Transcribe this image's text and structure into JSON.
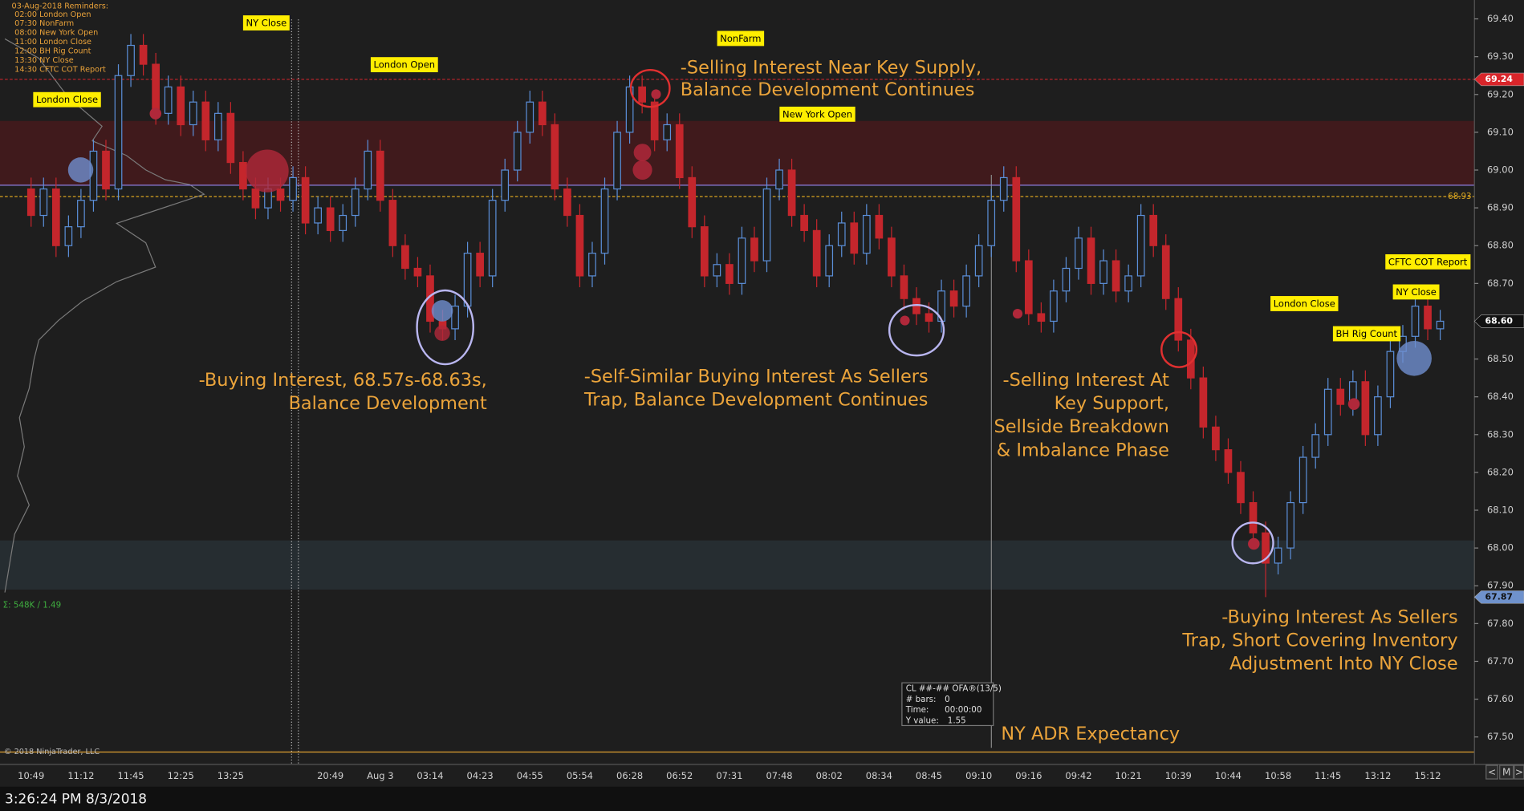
{
  "chart_data": {
    "type": "candlestick",
    "categories": [
      "10:49",
      null,
      null,
      null,
      "11:12",
      null,
      null,
      null,
      "11:45",
      null,
      null,
      null,
      "12:25",
      null,
      null,
      null,
      "13:25",
      null,
      null,
      null,
      null,
      null,
      null,
      null,
      "20:49",
      null,
      null,
      null,
      "Aug 3",
      null,
      null,
      null,
      "03:14",
      null,
      null,
      null,
      "04:23",
      null,
      null,
      null,
      "04:55",
      null,
      null,
      null,
      "05:54",
      null,
      null,
      null,
      "06:28",
      null,
      null,
      null,
      "06:52",
      null,
      null,
      null,
      "07:31",
      null,
      null,
      null,
      "07:48",
      null,
      null,
      null,
      "08:02",
      null,
      null,
      null,
      "08:34",
      null,
      null,
      null,
      "08:45",
      null,
      null,
      null,
      "09:10",
      null,
      null,
      null,
      "09:16",
      null,
      null,
      null,
      "09:42",
      null,
      null,
      null,
      "10:21",
      null,
      null,
      null,
      "10:39",
      null,
      null,
      null,
      "10:44",
      null,
      null,
      null,
      "10:58",
      null,
      null,
      null,
      "11:45",
      null,
      null,
      null,
      "13:12",
      null,
      null,
      null,
      "15:12",
      null
    ],
    "ohlc": [
      [
        68.95,
        68.98,
        68.85,
        68.88
      ],
      [
        68.88,
        68.98,
        68.85,
        68.95
      ],
      [
        68.95,
        68.98,
        68.77,
        68.8
      ],
      [
        68.8,
        68.88,
        68.77,
        68.85
      ],
      [
        68.85,
        68.95,
        68.82,
        68.92
      ],
      [
        68.92,
        69.08,
        68.89,
        69.05
      ],
      [
        69.05,
        69.08,
        68.92,
        68.95
      ],
      [
        68.95,
        69.28,
        68.92,
        69.25
      ],
      [
        69.25,
        69.36,
        69.22,
        69.33
      ],
      [
        69.33,
        69.36,
        69.25,
        69.28
      ],
      [
        69.28,
        69.31,
        69.12,
        69.15
      ],
      [
        69.15,
        69.25,
        69.12,
        69.22
      ],
      [
        69.22,
        69.25,
        69.09,
        69.12
      ],
      [
        69.12,
        69.21,
        69.09,
        69.18
      ],
      [
        69.18,
        69.21,
        69.05,
        69.08
      ],
      [
        69.08,
        69.18,
        69.05,
        69.15
      ],
      [
        69.15,
        69.18,
        68.99,
        69.02
      ],
      [
        69.02,
        69.05,
        68.92,
        68.95
      ],
      [
        68.95,
        68.98,
        68.87,
        68.9
      ],
      [
        68.9,
        68.98,
        68.87,
        68.95
      ],
      [
        68.95,
        68.98,
        68.89,
        68.92
      ],
      [
        68.92,
        69.01,
        68.89,
        68.98
      ],
      [
        68.98,
        69.01,
        68.83,
        68.86
      ],
      [
        68.86,
        68.93,
        68.83,
        68.9
      ],
      [
        68.9,
        68.93,
        68.81,
        68.84
      ],
      [
        68.84,
        68.91,
        68.81,
        68.88
      ],
      [
        68.88,
        68.98,
        68.85,
        68.95
      ],
      [
        68.95,
        69.08,
        68.92,
        69.05
      ],
      [
        69.05,
        69.08,
        68.89,
        68.92
      ],
      [
        68.92,
        68.95,
        68.77,
        68.8
      ],
      [
        68.8,
        68.83,
        68.71,
        68.74
      ],
      [
        68.74,
        68.77,
        68.69,
        68.72
      ],
      [
        68.72,
        68.75,
        68.57,
        68.6
      ],
      [
        68.6,
        68.63,
        68.55,
        68.58
      ],
      [
        68.58,
        68.67,
        68.55,
        68.64
      ],
      [
        68.64,
        68.81,
        68.61,
        68.78
      ],
      [
        68.78,
        68.81,
        68.69,
        68.72
      ],
      [
        68.72,
        68.95,
        68.69,
        68.92
      ],
      [
        68.92,
        69.03,
        68.89,
        69.0
      ],
      [
        69.0,
        69.13,
        68.97,
        69.1
      ],
      [
        69.1,
        69.21,
        69.07,
        69.18
      ],
      [
        69.18,
        69.21,
        69.09,
        69.12
      ],
      [
        69.12,
        69.15,
        68.92,
        68.95
      ],
      [
        68.95,
        68.98,
        68.85,
        68.88
      ],
      [
        68.88,
        68.91,
        68.69,
        68.72
      ],
      [
        68.72,
        68.81,
        68.69,
        68.78
      ],
      [
        68.78,
        68.98,
        68.75,
        68.95
      ],
      [
        68.95,
        69.13,
        68.92,
        69.1
      ],
      [
        69.1,
        69.25,
        69.07,
        69.22
      ],
      [
        69.22,
        69.25,
        69.15,
        69.18
      ],
      [
        69.18,
        69.21,
        69.05,
        69.08
      ],
      [
        69.08,
        69.15,
        69.05,
        69.12
      ],
      [
        69.12,
        69.15,
        68.95,
        68.98
      ],
      [
        68.98,
        69.01,
        68.82,
        68.85
      ],
      [
        68.85,
        68.88,
        68.69,
        68.72
      ],
      [
        68.72,
        68.78,
        68.69,
        68.75
      ],
      [
        68.75,
        68.78,
        68.67,
        68.7
      ],
      [
        68.7,
        68.85,
        68.67,
        68.82
      ],
      [
        68.82,
        68.85,
        68.73,
        68.76
      ],
      [
        68.76,
        68.98,
        68.73,
        68.95
      ],
      [
        68.95,
        69.03,
        68.92,
        69.0
      ],
      [
        69.0,
        69.03,
        68.85,
        68.88
      ],
      [
        68.88,
        68.91,
        68.81,
        68.84
      ],
      [
        68.84,
        68.87,
        68.69,
        68.72
      ],
      [
        68.72,
        68.83,
        68.69,
        68.8
      ],
      [
        68.8,
        68.89,
        68.77,
        68.86
      ],
      [
        68.86,
        68.89,
        68.75,
        68.78
      ],
      [
        68.78,
        68.91,
        68.75,
        68.88
      ],
      [
        68.88,
        68.91,
        68.79,
        68.82
      ],
      [
        68.82,
        68.85,
        68.69,
        68.72
      ],
      [
        68.72,
        68.75,
        68.63,
        68.66
      ],
      [
        68.66,
        68.69,
        68.59,
        68.62
      ],
      [
        68.62,
        68.65,
        68.57,
        68.6
      ],
      [
        68.6,
        68.71,
        68.57,
        68.68
      ],
      [
        68.68,
        68.71,
        68.61,
        68.64
      ],
      [
        68.64,
        68.75,
        68.61,
        68.72
      ],
      [
        68.72,
        68.83,
        68.69,
        68.8
      ],
      [
        68.8,
        68.95,
        68.77,
        68.92
      ],
      [
        68.92,
        69.01,
        68.89,
        68.98
      ],
      [
        68.98,
        69.01,
        68.73,
        68.76
      ],
      [
        68.76,
        68.79,
        68.59,
        68.62
      ],
      [
        68.62,
        68.65,
        68.57,
        68.6
      ],
      [
        68.6,
        68.71,
        68.57,
        68.68
      ],
      [
        68.68,
        68.77,
        68.65,
        68.74
      ],
      [
        68.74,
        68.85,
        68.71,
        68.82
      ],
      [
        68.82,
        68.85,
        68.67,
        68.7
      ],
      [
        68.7,
        68.79,
        68.67,
        68.76
      ],
      [
        68.76,
        68.79,
        68.65,
        68.68
      ],
      [
        68.68,
        68.75,
        68.65,
        68.72
      ],
      [
        68.72,
        68.91,
        68.69,
        68.88
      ],
      [
        68.88,
        68.91,
        68.77,
        68.8
      ],
      [
        68.8,
        68.83,
        68.63,
        68.66
      ],
      [
        68.66,
        68.69,
        68.52,
        68.55
      ],
      [
        68.55,
        68.58,
        68.42,
        68.45
      ],
      [
        68.45,
        68.48,
        68.29,
        68.32
      ],
      [
        68.32,
        68.35,
        68.23,
        68.26
      ],
      [
        68.26,
        68.29,
        68.17,
        68.2
      ],
      [
        68.2,
        68.23,
        68.09,
        68.12
      ],
      [
        68.12,
        68.15,
        68.01,
        68.04
      ],
      [
        68.04,
        68.07,
        67.87,
        67.96
      ],
      [
        67.96,
        68.03,
        67.93,
        68.0
      ],
      [
        68.0,
        68.15,
        67.97,
        68.12
      ],
      [
        68.12,
        68.27,
        68.09,
        68.24
      ],
      [
        68.24,
        68.33,
        68.21,
        68.3
      ],
      [
        68.3,
        68.45,
        68.27,
        68.42
      ],
      [
        68.42,
        68.45,
        68.35,
        68.38
      ],
      [
        68.38,
        68.47,
        68.35,
        68.44
      ],
      [
        68.44,
        68.47,
        68.27,
        68.3
      ],
      [
        68.3,
        68.43,
        68.27,
        68.4
      ],
      [
        68.4,
        68.55,
        68.37,
        68.52
      ],
      [
        68.52,
        68.59,
        68.49,
        68.56
      ],
      [
        68.56,
        68.67,
        68.53,
        68.64
      ],
      [
        68.64,
        68.67,
        68.55,
        68.58
      ],
      [
        68.58,
        68.63,
        68.55,
        68.6
      ]
    ],
    "up_color": "#5b8fd9",
    "down_color": "#c4262c",
    "ylim": [
      67.43,
      69.45
    ],
    "yticks": [
      {
        "value": 69.4,
        "label": "69.40"
      },
      {
        "value": 69.3,
        "label": "69.30"
      },
      {
        "value": 69.2,
        "label": "69.20"
      },
      {
        "value": 69.1,
        "label": "69.10"
      },
      {
        "value": 69.0,
        "label": "69.00"
      },
      {
        "value": 68.9,
        "label": "68.90"
      },
      {
        "value": 68.8,
        "label": "68.80"
      },
      {
        "value": 68.7,
        "label": "68.70"
      },
      {
        "value": 68.6,
        "label": "68.60"
      },
      {
        "value": 68.5,
        "label": "68.50"
      },
      {
        "value": 68.4,
        "label": "68.40"
      },
      {
        "value": 68.3,
        "label": "68.30"
      },
      {
        "value": 68.2,
        "label": "68.20"
      },
      {
        "value": 68.1,
        "label": "68.10"
      },
      {
        "value": 68.0,
        "label": "68.00"
      },
      {
        "value": 67.9,
        "label": "67.90"
      },
      {
        "value": 67.8,
        "label": "67.80"
      },
      {
        "value": 67.7,
        "label": "67.70"
      },
      {
        "value": 67.6,
        "label": "67.60"
      },
      {
        "value": 67.5,
        "label": "67.50"
      }
    ],
    "zones": [
      {
        "from": 69.13,
        "to": 68.96,
        "color": "rgba(120,22,26,0.38)"
      },
      {
        "from": 68.02,
        "to": 67.89,
        "color": "rgba(55,75,85,0.35)"
      }
    ],
    "levels": [
      {
        "value": 69.24,
        "color": "#c4262c",
        "dash": "3 2"
      },
      {
        "value": 68.96,
        "color": "#8d7fe0"
      },
      {
        "value": 68.93,
        "color": "#d9a520",
        "dash": "3 2"
      },
      {
        "value": 67.46,
        "color": "#e0a030"
      }
    ],
    "inline_labels": [
      {
        "value": 68.93,
        "color": "#d9a520"
      }
    ],
    "price_markers": [
      {
        "value": 69.24,
        "color": "#d9252a",
        "text_color": "#ffffff"
      },
      {
        "value": 68.6,
        "label": "68.60",
        "color": "#111111",
        "text_color": "#ffffff"
      },
      {
        "value": 67.87,
        "color": "#6f92cc",
        "text_color": "#111111"
      }
    ]
  },
  "annotations": [
    {
      "lines": [
        "-Selling Interest Near Key Supply,",
        "Balance Development Continues"
      ]
    },
    {
      "lines": [
        "-Buying Interest, 68.57s-68.63s,",
        "Balance Development"
      ]
    },
    {
      "lines": [
        "-Self-Similar Buying Interest As Sellers",
        "Trap, Balance Development Continues"
      ]
    },
    {
      "lines": [
        "-Selling Interest At",
        "Key Support,",
        "Sellside Breakdown",
        "& Imbalance Phase"
      ]
    },
    {
      "lines": [
        "-Buying Interest As Sellers",
        "Trap, Short Covering Inventory",
        "Adjustment Into NY Close"
      ]
    },
    {
      "lines": [
        "NY ADR Expectancy"
      ]
    }
  ],
  "event_labels": [
    "London Close",
    "NY Close",
    "London Open",
    "NonFarm",
    "New York Open",
    "London Close",
    "BH Rig Count",
    "NY Close",
    "CFTC COT Report"
  ],
  "reminders": {
    "title": "03-Aug-2018 Reminders:",
    "items": [
      "02:00 London Open",
      "07:30 NonFarm",
      "08:00 New York Open",
      "11:00 London Close",
      "12:00 BH Rig Count",
      "13:30 NY Close",
      "14:30 CFTC COT Report"
    ]
  },
  "info_box": {
    "title": "CL ##-## OFA®(13/5)",
    "rows": [
      [
        "# bars:",
        "0"
      ],
      [
        "Time:",
        "00:00:00"
      ],
      [
        "Y value:",
        "1.55"
      ]
    ]
  },
  "volume_summary": "Σ: 548K / 1.49",
  "copyright": "© 2018 NinjaTrader, LLC",
  "status_bar": "3:26:24 PM 8/3/2018",
  "nav": [
    "<",
    "M",
    ">"
  ]
}
